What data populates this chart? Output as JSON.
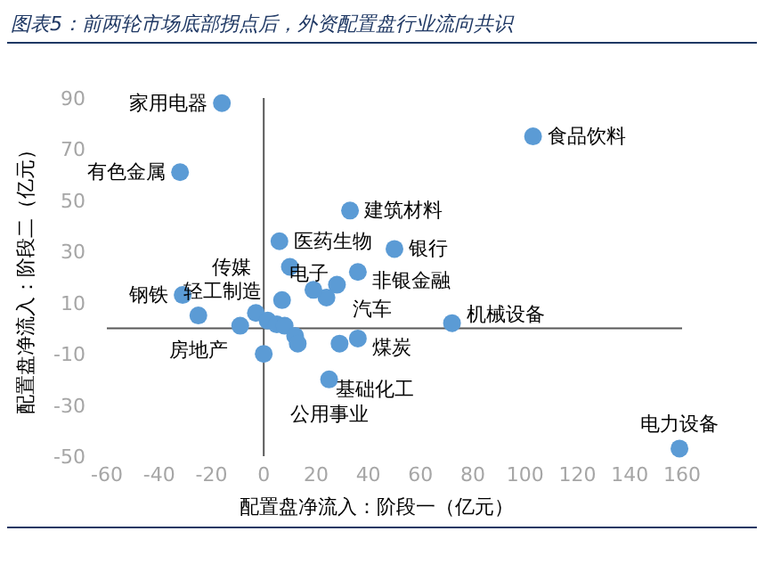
{
  "chart_data": {
    "type": "scatter",
    "title": "图表5：前两轮市场底部拐点后，外资配置盘行业流向共识",
    "xlabel": "配置盘净流入：阶段一（亿元）",
    "ylabel": "配置盘净流入：阶段二（亿元）",
    "xlim": [
      -60,
      160
    ],
    "xticks": [
      -60,
      -40,
      -20,
      0,
      20,
      40,
      60,
      80,
      100,
      120,
      140,
      160
    ],
    "ylim": [
      -50,
      90
    ],
    "yticks": [
      -50,
      -30,
      -10,
      10,
      30,
      50,
      70,
      90
    ],
    "marker": "circle",
    "series": [
      {
        "color": "#5b9bd5",
        "x": [
          -16,
          -32,
          33,
          103,
          6,
          50,
          36,
          10,
          28,
          24,
          19,
          7,
          -31,
          -25,
          -9,
          -3,
          1.5,
          5,
          8,
          12,
          13,
          0,
          36,
          29,
          25,
          72,
          159
        ],
        "values": [
          88,
          61,
          46,
          75,
          34,
          31,
          22,
          24,
          17,
          12,
          15,
          11,
          13,
          5,
          1,
          6,
          3,
          1.5,
          1,
          -3,
          -6,
          -10,
          -4,
          -6,
          -20,
          2,
          -47
        ]
      }
    ],
    "annotations": [
      {
        "text": "家用电器",
        "x": -16,
        "y": 88
      },
      {
        "text": "有色金属",
        "x": -32,
        "y": 61
      },
      {
        "text": "建筑材料",
        "x": 33,
        "y": 46
      },
      {
        "text": "食品饮料",
        "x": 103,
        "y": 75
      },
      {
        "text": "医药生物",
        "x": 6,
        "y": 34
      },
      {
        "text": "银行",
        "x": 50,
        "y": 31
      },
      {
        "text": "非银金融",
        "x": 36,
        "y": 22
      },
      {
        "text": "传媒",
        "x": 10,
        "y": 24
      },
      {
        "text": "汽车",
        "x": 28,
        "y": 17
      },
      {
        "text": "电子",
        "x": 24,
        "y": 12
      },
      {
        "text": "钢铁",
        "x": -31,
        "y": 13
      },
      {
        "text": "房地产",
        "x": -25,
        "y": 5
      },
      {
        "text": "轻工制造",
        "x": -9,
        "y": 1
      },
      {
        "text": "煤炭",
        "x": 36,
        "y": -4
      },
      {
        "text": "基础化工",
        "x": 29,
        "y": -6
      },
      {
        "text": "公用事业",
        "x": 25,
        "y": -20
      },
      {
        "text": "机械设备",
        "x": 72,
        "y": 2
      },
      {
        "text": "电力设备",
        "x": 159,
        "y": -47
      }
    ]
  }
}
